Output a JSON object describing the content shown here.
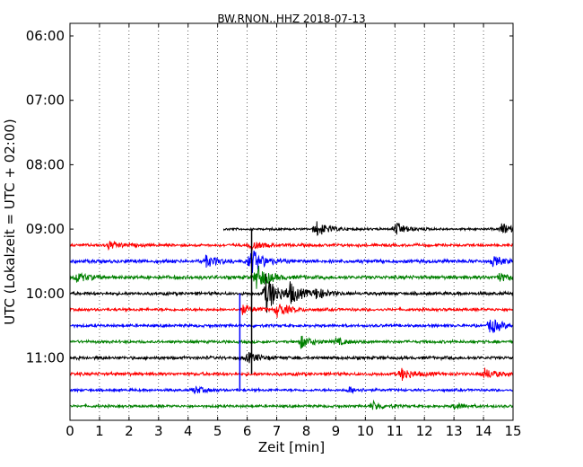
{
  "chart_data": {
    "type": "line",
    "title": "BW.RNON..HHZ 2018-07-13",
    "xlabel": "Zeit  [min]",
    "ylabel": "UTC (Lokalzeit = UTC + 02:00)",
    "xlim": [
      0,
      15
    ],
    "x_ticks": [
      "0",
      "1",
      "2",
      "3",
      "4",
      "5",
      "6",
      "7",
      "8",
      "9",
      "10",
      "11",
      "12",
      "13",
      "14",
      "15"
    ],
    "y_ticks": [
      "06:00",
      "07:00",
      "08:00",
      "09:00",
      "10:00",
      "11:00"
    ],
    "grid": "vertical dotted",
    "line_colors": [
      "#000000",
      "#ff0000",
      "#0000ff",
      "#008000"
    ],
    "traces": [
      {
        "start": "09:00",
        "color": "#000000",
        "x_range": [
          5.2,
          15
        ],
        "noise": 0.18,
        "bursts": [
          {
            "x": 8.3,
            "amp": 1.6
          },
          {
            "x": 11.0,
            "amp": 1.3
          },
          {
            "x": 14.6,
            "amp": 1.0
          }
        ]
      },
      {
        "start": "09:15",
        "color": "#ff0000",
        "x_range": [
          0,
          15
        ],
        "noise": 0.22,
        "bursts": [
          {
            "x": 1.3,
            "amp": 0.8
          },
          {
            "x": 6.1,
            "amp": 0.8
          }
        ]
      },
      {
        "start": "09:30",
        "color": "#0000ff",
        "x_range": [
          0,
          15
        ],
        "noise": 0.28,
        "bursts": [
          {
            "x": 4.6,
            "amp": 1.0
          },
          {
            "x": 6.1,
            "amp": 2.6
          },
          {
            "x": 14.3,
            "amp": 0.8
          }
        ]
      },
      {
        "start": "09:45",
        "color": "#008000",
        "x_range": [
          0,
          15
        ],
        "noise": 0.28,
        "bursts": [
          {
            "x": 0.2,
            "amp": 0.9
          },
          {
            "x": 6.3,
            "amp": 2.4
          },
          {
            "x": 14.5,
            "amp": 0.7
          }
        ]
      },
      {
        "start": "10:00",
        "color": "#000000",
        "x_range": [
          0,
          15
        ],
        "noise": 0.25,
        "bursts": [
          {
            "x": 6.6,
            "amp": 4.0
          },
          {
            "x": 7.4,
            "amp": 2.0
          },
          {
            "x": 8.3,
            "amp": 1.0
          }
        ]
      },
      {
        "start": "10:15",
        "color": "#ff0000",
        "x_range": [
          0,
          15
        ],
        "noise": 0.22,
        "bursts": [
          {
            "x": 5.8,
            "amp": 0.9
          },
          {
            "x": 7.0,
            "amp": 1.4
          }
        ]
      },
      {
        "start": "10:30",
        "color": "#0000ff",
        "x_range": [
          0,
          15
        ],
        "noise": 0.22,
        "bursts": [
          {
            "x": 14.2,
            "amp": 1.6
          }
        ]
      },
      {
        "start": "10:45",
        "color": "#008000",
        "x_range": [
          0,
          15
        ],
        "noise": 0.22,
        "bursts": [
          {
            "x": 7.8,
            "amp": 1.2
          },
          {
            "x": 9.0,
            "amp": 0.6
          }
        ]
      },
      {
        "start": "11:00",
        "color": "#000000",
        "x_range": [
          0,
          15
        ],
        "noise": 0.25,
        "bursts": [
          {
            "x": 6.0,
            "amp": 1.0
          }
        ]
      },
      {
        "start": "11:15",
        "color": "#ff0000",
        "x_range": [
          0,
          15
        ],
        "noise": 0.25,
        "bursts": [
          {
            "x": 11.2,
            "amp": 1.2
          },
          {
            "x": 14.0,
            "amp": 1.0
          }
        ]
      },
      {
        "start": "11:30",
        "color": "#0000ff",
        "x_range": [
          0,
          15
        ],
        "noise": 0.2,
        "bursts": [
          {
            "x": 4.2,
            "amp": 0.7
          },
          {
            "x": 9.4,
            "amp": 0.6
          }
        ]
      },
      {
        "start": "11:45",
        "color": "#008000",
        "x_range": [
          0,
          15
        ],
        "noise": 0.2,
        "bursts": [
          {
            "x": 10.2,
            "amp": 0.9
          },
          {
            "x": 13.0,
            "amp": 0.6
          }
        ]
      }
    ],
    "spikes": [
      {
        "x": 5.75,
        "from": "10:00",
        "to": "11:30",
        "color": "#0000ff"
      },
      {
        "x": 6.15,
        "from": "09:00",
        "to": "11:15",
        "color": "#000000"
      }
    ]
  }
}
